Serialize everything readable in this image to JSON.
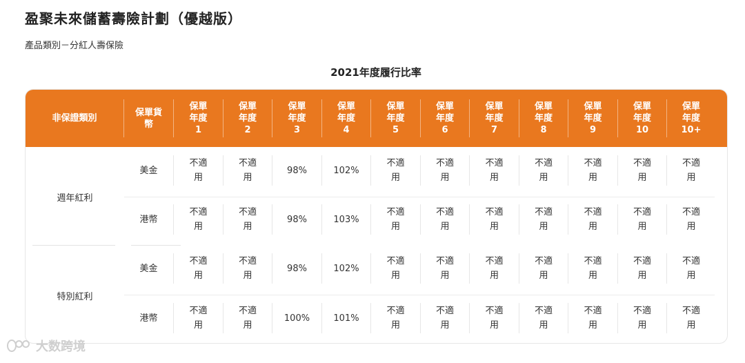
{
  "title": "盈聚未來儲蓄壽險計劃（優越版）",
  "subtitle": "產品類別－分紅人壽保險",
  "caption": "2021年度履行比率",
  "table": {
    "headers": [
      "非保證類別",
      "保單貨\n幣",
      "保單\n年度\n1",
      "保單\n年度\n2",
      "保單\n年度\n3",
      "保單\n年度\n4",
      "保單\n年度\n5",
      "保單\n年度\n6",
      "保單\n年度\n7",
      "保單\n年度\n8",
      "保單\n年度\n9",
      "保單\n年度\n10",
      "保單\n年度\n10+"
    ],
    "groups": [
      {
        "label": "週年紅利",
        "rows": [
          {
            "currency": "美金",
            "values": [
              "不適\n用",
              "不適\n用",
              "98%",
              "102%",
              "不適\n用",
              "不適\n用",
              "不適\n用",
              "不適\n用",
              "不適\n用",
              "不適\n用",
              "不適\n用"
            ]
          },
          {
            "currency": "港幣",
            "values": [
              "不適\n用",
              "不適\n用",
              "98%",
              "103%",
              "不適\n用",
              "不適\n用",
              "不適\n用",
              "不適\n用",
              "不適\n用",
              "不適\n用",
              "不適\n用"
            ]
          }
        ]
      },
      {
        "label": "特別紅利",
        "rows": [
          {
            "currency": "美金",
            "values": [
              "不適\n用",
              "不適\n用",
              "98%",
              "102%",
              "不適\n用",
              "不適\n用",
              "不適\n用",
              "不適\n用",
              "不適\n用",
              "不適\n用",
              "不適\n用"
            ]
          },
          {
            "currency": "港幣",
            "values": [
              "不適\n用",
              "不適\n用",
              "100%",
              "101%",
              "不適\n用",
              "不適\n用",
              "不適\n用",
              "不適\n用",
              "不適\n用",
              "不適\n用",
              "不適\n用"
            ]
          }
        ]
      }
    ]
  },
  "watermark": "大数跨境",
  "colors": {
    "header_bg": "#e9781f",
    "header_text": "#ffffff"
  }
}
